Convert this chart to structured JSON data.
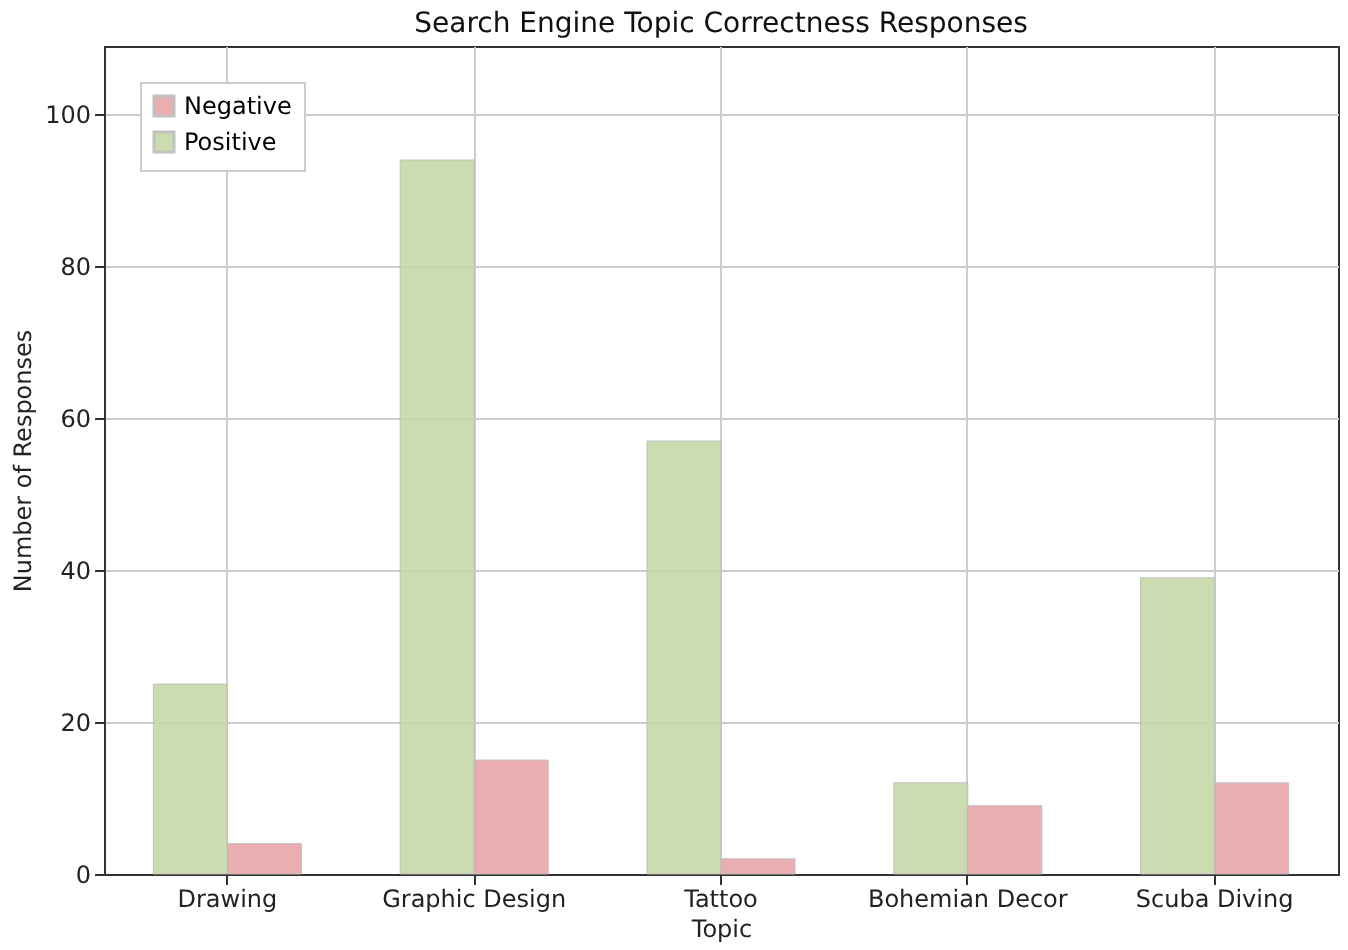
{
  "chart_data": {
    "type": "bar",
    "title": "Search Engine Topic Correctness Responses",
    "xlabel": "Topic",
    "ylabel": "Number of Responses",
    "categories": [
      "Drawing",
      "Graphic Design",
      "Tattoo",
      "Bohemian Decor",
      "Scuba Diving"
    ],
    "series": [
      {
        "name": "Positive",
        "color": "#c5d9a8",
        "values": [
          25,
          94,
          57,
          12,
          39
        ]
      },
      {
        "name": "Negative",
        "color": "#e8a5a8",
        "values": [
          4,
          15,
          2,
          9,
          12
        ]
      }
    ],
    "ylim": [
      0,
      109
    ],
    "yticks": [
      0,
      20,
      40,
      60,
      80,
      100
    ],
    "grid": true,
    "legend": "top left"
  }
}
